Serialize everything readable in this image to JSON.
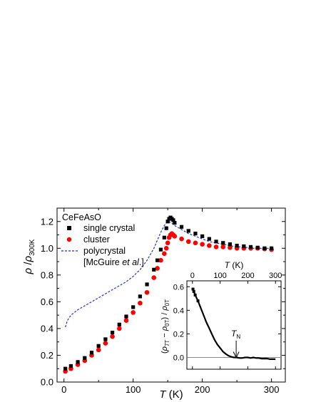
{
  "chart_data": [
    {
      "type": "scatter",
      "panel": "main",
      "title": "",
      "xlabel": "T (K)",
      "ylabel": "ρ/ρ300K",
      "xlim": [
        -10,
        320
      ],
      "ylim": [
        0.0,
        1.3
      ],
      "xticks": [
        "0",
        "100",
        "200",
        "300"
      ],
      "yticks": [
        "0.0",
        "0.2",
        "0.4",
        "0.6",
        "0.8",
        "1.0",
        "1.2"
      ],
      "annotation": "CeFeAsO",
      "legend": {
        "position": "top-left",
        "entries": [
          {
            "label": "single crystal",
            "marker": "square",
            "color": "#000000"
          },
          {
            "label": "cluster",
            "marker": "circle",
            "color": "#ff0000"
          },
          {
            "label": "polycrystal",
            "marker": "dashed-line",
            "color": "#1f2fd8"
          },
          {
            "label_parts": [
              "[McGuire ",
              "et al",
              ".]"
            ],
            "marker": "none"
          }
        ]
      },
      "series": [
        {
          "name": "single crystal",
          "style": "square",
          "color": "#000000",
          "x": [
            2,
            10,
            20,
            30,
            40,
            50,
            60,
            70,
            80,
            90,
            100,
            110,
            120,
            130,
            135,
            140,
            145,
            148,
            150,
            152,
            154,
            156,
            158,
            160,
            170,
            180,
            190,
            200,
            210,
            220,
            230,
            240,
            250,
            260,
            270,
            280,
            290,
            300
          ],
          "y": [
            0.1,
            0.12,
            0.15,
            0.18,
            0.22,
            0.27,
            0.32,
            0.37,
            0.43,
            0.49,
            0.56,
            0.64,
            0.73,
            0.84,
            0.91,
            0.99,
            1.08,
            1.15,
            1.2,
            1.22,
            1.23,
            1.22,
            1.21,
            1.19,
            1.16,
            1.13,
            1.11,
            1.09,
            1.07,
            1.05,
            1.04,
            1.03,
            1.02,
            1.015,
            1.01,
            1.005,
            1.0,
            1.0
          ]
        },
        {
          "name": "cluster",
          "style": "circle",
          "color": "#ff0000",
          "x": [
            2,
            10,
            20,
            30,
            40,
            50,
            60,
            70,
            80,
            90,
            100,
            110,
            120,
            130,
            135,
            140,
            145,
            148,
            150,
            152,
            154,
            156,
            158,
            160,
            170,
            180,
            190,
            200,
            210,
            220,
            230,
            240,
            250,
            260,
            270,
            280,
            290,
            300
          ],
          "y": [
            0.08,
            0.1,
            0.13,
            0.16,
            0.2,
            0.24,
            0.29,
            0.34,
            0.4,
            0.46,
            0.52,
            0.59,
            0.67,
            0.78,
            0.85,
            0.91,
            0.96,
            1.0,
            1.04,
            1.08,
            1.1,
            1.11,
            1.1,
            1.09,
            1.07,
            1.05,
            1.04,
            1.03,
            1.02,
            1.01,
            1.01,
            1.005,
            1.0,
            1.0,
            1.0,
            1.0,
            0.995,
            0.99
          ]
        },
        {
          "name": "polycrystal",
          "style": "dashed",
          "color": "#1f2fd8",
          "x": [
            2,
            5,
            10,
            20,
            30,
            40,
            50,
            60,
            70,
            80,
            90,
            100,
            110,
            120,
            130,
            135,
            140,
            145,
            148,
            150,
            152,
            155,
            160,
            170,
            180,
            190,
            200,
            210,
            220,
            230,
            240,
            250,
            260,
            270,
            280,
            290,
            300
          ],
          "y": [
            0.41,
            0.46,
            0.5,
            0.54,
            0.57,
            0.6,
            0.63,
            0.66,
            0.69,
            0.72,
            0.75,
            0.79,
            0.84,
            0.91,
            1.0,
            1.06,
            1.12,
            1.17,
            1.19,
            1.2,
            1.2,
            1.19,
            1.17,
            1.14,
            1.11,
            1.09,
            1.07,
            1.05,
            1.04,
            1.03,
            1.02,
            1.01,
            1.01,
            1.0,
            1.0,
            1.0,
            1.0
          ]
        }
      ]
    },
    {
      "type": "scatter",
      "panel": "inset",
      "title": "",
      "xlabel": "T (K)",
      "ylabel": "(ρ7T − ρ0T) / ρ0T",
      "xlim": [
        -20,
        320
      ],
      "ylim": [
        -0.1,
        0.65
      ],
      "xticks": [
        "0",
        "100",
        "200",
        "300"
      ],
      "yticks": [
        "0.0",
        "0.2",
        "0.4",
        "0.6"
      ],
      "annotation": "TN",
      "annotation_x": 158,
      "series": [
        {
          "name": "",
          "style": "square-line",
          "color": "#000000",
          "x": [
            2,
            5,
            10,
            20,
            30,
            40,
            50,
            60,
            70,
            80,
            90,
            100,
            110,
            120,
            130,
            140,
            150,
            160,
            170,
            180,
            190,
            200,
            210,
            220,
            230,
            240,
            250,
            260,
            270,
            280,
            290,
            300
          ],
          "y": [
            0.58,
            0.56,
            0.53,
            0.48,
            0.42,
            0.36,
            0.3,
            0.25,
            0.2,
            0.15,
            0.11,
            0.08,
            0.05,
            0.03,
            0.015,
            0.005,
            0.0,
            0.0,
            -0.005,
            -0.005,
            0.0,
            0.0,
            -0.005,
            0.0,
            -0.005,
            -0.005,
            -0.01,
            -0.01,
            -0.01,
            -0.015,
            -0.015,
            -0.015
          ]
        }
      ]
    }
  ]
}
